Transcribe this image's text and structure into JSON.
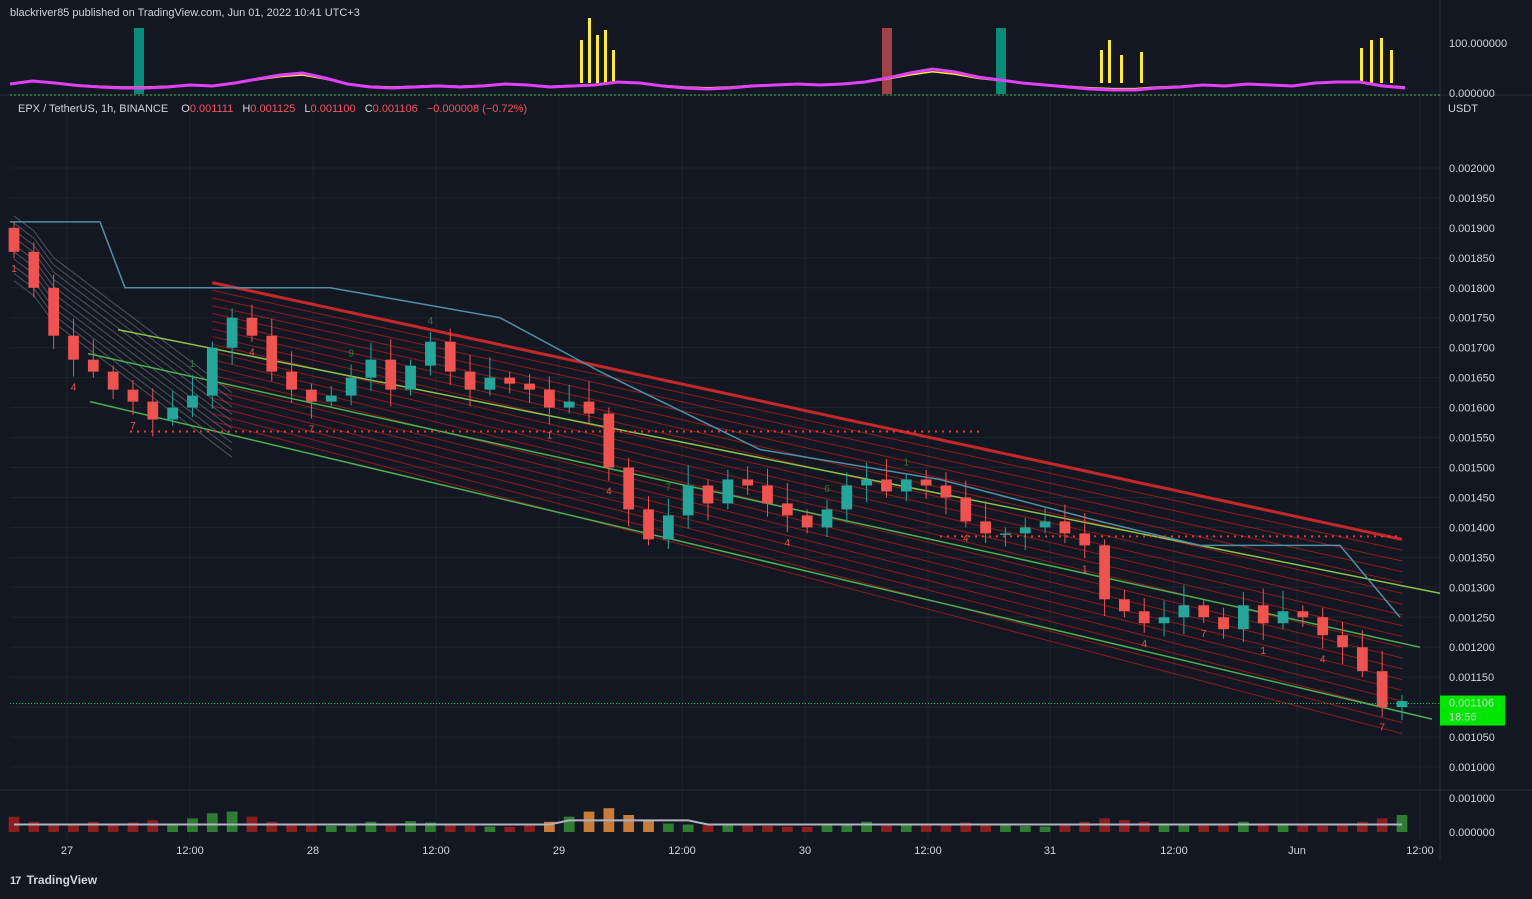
{
  "header": {
    "published": "blackriver85 published on TradingView.com, Jun 01, 2022 10:41 UTC+3"
  },
  "legend": {
    "symbol": "EPX / TetherUS, 1h, BINANCE",
    "o_label": "O",
    "o_value": "0.001111",
    "h_label": "H",
    "h_value": "0.001125",
    "l_label": "L",
    "l_value": "0.001100",
    "c_label": "C",
    "c_value": "0.001106",
    "change": "−0.000008 (−0.72%)"
  },
  "footer": {
    "brand": "TradingView",
    "logo_glyph": "17"
  },
  "colors": {
    "background": "#131722",
    "up": "#26a69a",
    "down": "#ef5350",
    "channel": "#4caf50",
    "ribbon": "#b71c1c",
    "baseline": "#64b5f6",
    "price_tag": "#00e600",
    "magenta": "#e040fb",
    "yellow": "#ffeb3b"
  },
  "chart_data": [
    {
      "type": "line",
      "name": "oscillator",
      "ylim": [
        0,
        100
      ],
      "y_ticks": [
        "100.000000",
        "0.000000"
      ],
      "values": [
        18,
        24,
        20,
        15,
        12,
        10,
        10,
        12,
        16,
        14,
        20,
        28,
        36,
        40,
        30,
        18,
        12,
        10,
        12,
        14,
        12,
        14,
        18,
        16,
        12,
        14,
        16,
        22,
        20,
        14,
        10,
        8,
        10,
        14,
        16,
        18,
        16,
        18,
        22,
        30,
        40,
        48,
        42,
        32,
        26,
        20,
        16,
        12,
        8,
        6,
        6,
        10,
        12,
        16,
        14,
        18,
        16,
        14,
        20,
        22,
        22,
        14,
        10
      ]
    },
    {
      "type": "line",
      "quote": "USDT",
      "ylim": [
        0.00098,
        0.00204
      ],
      "y_ticks": [
        "0.002000",
        "0.001950",
        "0.001900",
        "0.001850",
        "0.001800",
        "0.001750",
        "0.001700",
        "0.001650",
        "0.001600",
        "0.001550",
        "0.001500",
        "0.001450",
        "0.001400",
        "0.001350",
        "0.001300",
        "0.001250",
        "0.001200",
        "0.001150",
        "0.001100",
        "0.001050",
        "0.001000"
      ],
      "x_ticks": [
        "27",
        "12:00",
        "28",
        "12:00",
        "29",
        "12:00",
        "30",
        "12:00",
        "31",
        "12:00",
        "Jun",
        "12:00"
      ],
      "last_price": "0.001106",
      "countdown": "18:56",
      "close": [
        0.00186,
        0.0018,
        0.00172,
        0.00168,
        0.00166,
        0.00163,
        0.00161,
        0.00158,
        0.0016,
        0.00162,
        0.0017,
        0.00175,
        0.00172,
        0.00166,
        0.00163,
        0.00161,
        0.00162,
        0.00165,
        0.00168,
        0.00163,
        0.00167,
        0.00171,
        0.00166,
        0.00163,
        0.00165,
        0.00164,
        0.00163,
        0.0016,
        0.00161,
        0.00159,
        0.0015,
        0.00143,
        0.00138,
        0.00142,
        0.00147,
        0.00144,
        0.00148,
        0.00147,
        0.00144,
        0.00142,
        0.0014,
        0.00143,
        0.00147,
        0.00148,
        0.00146,
        0.00148,
        0.00147,
        0.00145,
        0.00141,
        0.00139,
        0.00139,
        0.0014,
        0.00141,
        0.00139,
        0.00137,
        0.00128,
        0.00126,
        0.00124,
        0.00125,
        0.00127,
        0.00125,
        0.00123,
        0.00127,
        0.00124,
        0.00126,
        0.00125,
        0.00122,
        0.0012,
        0.00116,
        0.0011,
        0.00111
      ]
    },
    {
      "type": "bar",
      "name": "volume",
      "ylim": [
        0,
        0.001
      ],
      "y_ticks": [
        "0.001000",
        "0.000000"
      ],
      "values": [
        0.00045,
        0.0003,
        0.0002,
        0.00025,
        0.0003,
        0.00022,
        0.00028,
        0.00035,
        0.00025,
        0.0004,
        0.00055,
        0.0006,
        0.00045,
        0.0003,
        0.00025,
        0.0002,
        0.00018,
        0.00022,
        0.0003,
        0.00025,
        0.00032,
        0.00028,
        0.00022,
        0.00018,
        0.00016,
        0.00015,
        0.0002,
        0.0003,
        0.00045,
        0.0006,
        0.0007,
        0.0005,
        0.00035,
        0.00025,
        0.00022,
        0.0002,
        0.00025,
        0.0002,
        0.00018,
        0.00016,
        0.00015,
        0.0002,
        0.00025,
        0.0003,
        0.00025,
        0.0002,
        0.00022,
        0.00025,
        0.00028,
        0.00025,
        0.0002,
        0.00018,
        0.00016,
        0.0002,
        0.0003,
        0.0004,
        0.00035,
        0.0003,
        0.00025,
        0.00022,
        0.0002,
        0.00025,
        0.0003,
        0.00025,
        0.00022,
        0.0002,
        0.00018,
        0.00025,
        0.0003,
        0.0004,
        0.0005
      ]
    }
  ]
}
